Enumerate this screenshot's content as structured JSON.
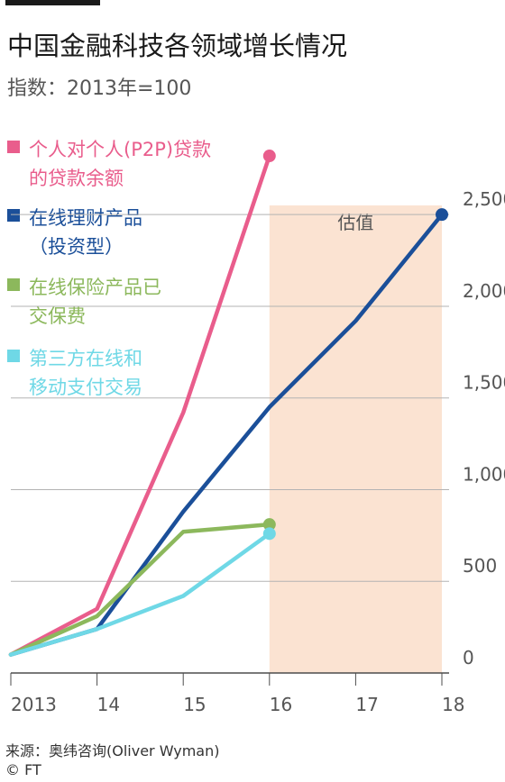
{
  "header": {
    "title": "中国金融科技各领域增长情况",
    "subtitle": "指数：2013年=100"
  },
  "footer": {
    "source": "来源：奥纬咨询(Oliver Wyman)",
    "copyright": "© FT"
  },
  "chart_data": {
    "type": "line",
    "x": [
      "2013",
      "14",
      "15",
      "16",
      "17",
      "18"
    ],
    "ylim": [
      0,
      2550
    ],
    "yticks": [
      "0",
      "500",
      "1,000",
      "1,500",
      "2,000",
      "2,500"
    ],
    "ytick_values": [
      0,
      500,
      1000,
      1500,
      2000,
      2500
    ],
    "grid": true,
    "y_axis_side": "right",
    "shaded_region": {
      "label": "估值",
      "from": "16",
      "to": "18",
      "color": "#fbe3d2"
    },
    "series": [
      {
        "name": "个人对个人(P2P)贷款\n的贷款余额",
        "color": "#e95d8c",
        "values": [
          100,
          350,
          1420,
          2820,
          null,
          null
        ],
        "end_marker": true
      },
      {
        "name": "在线理财产品\n（投资型）",
        "color": "#1b4f99",
        "values": [
          100,
          240,
          880,
          1450,
          1920,
          2500
        ],
        "end_marker": true
      },
      {
        "name": "在线保险产品已\n交保费",
        "color": "#8cb85c",
        "values": [
          100,
          310,
          770,
          810,
          null,
          null
        ],
        "end_marker": true
      },
      {
        "name": "第三方在线和\n移动支付交易",
        "color": "#6fd8e6",
        "values": [
          100,
          240,
          420,
          760,
          null,
          null
        ],
        "end_marker": true
      }
    ]
  }
}
